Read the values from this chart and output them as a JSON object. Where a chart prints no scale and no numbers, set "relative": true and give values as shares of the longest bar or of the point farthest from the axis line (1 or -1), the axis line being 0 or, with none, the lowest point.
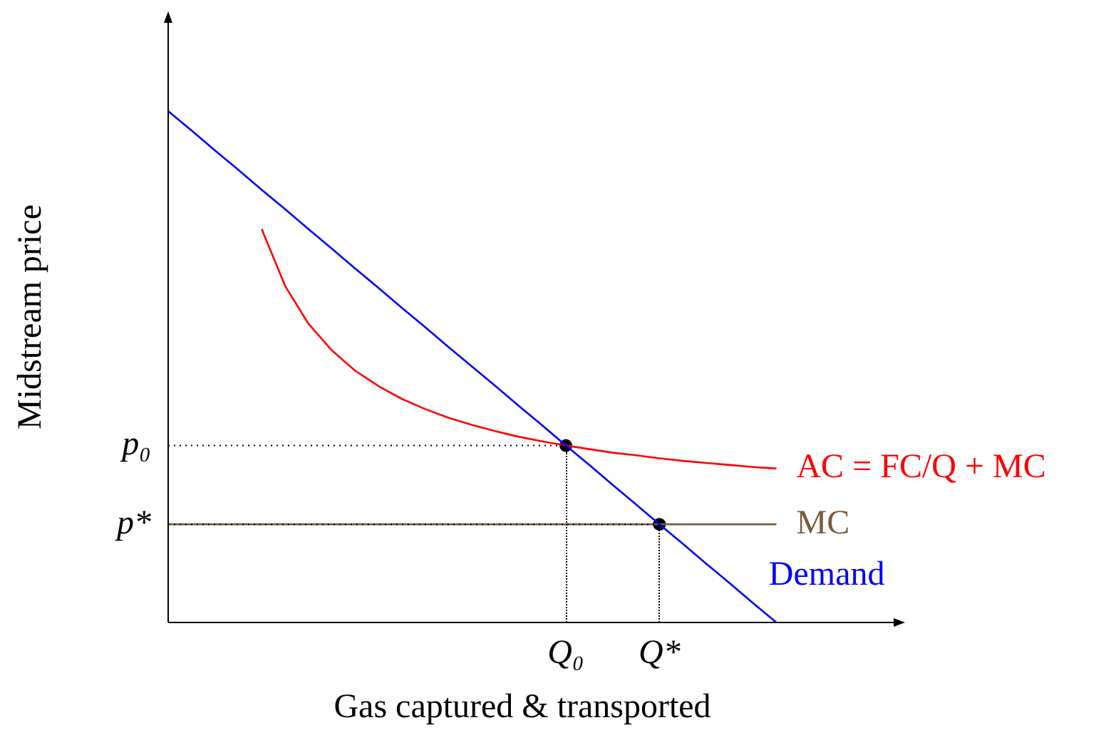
{
  "chart_data": {
    "type": "line",
    "relative": true,
    "xlabel": "Gas captured & transported",
    "ylabel": "Midstream price",
    "legend": false,
    "marker": "none",
    "line_style": "solid",
    "categories": [
      null,
      null,
      null,
      null,
      null,
      null,
      null,
      null,
      null,
      null,
      null,
      null,
      null,
      null,
      null,
      null,
      null,
      "Q₀",
      null,
      null,
      null,
      "Q*",
      null,
      null,
      null,
      null,
      null,
      null,
      null,
      null,
      null,
      null
    ],
    "series": [
      {
        "name": "Demand",
        "color": "#0000ff",
        "values": [
          1,
          0.962,
          0.923,
          0.885,
          0.846,
          0.808,
          0.769,
          0.731,
          0.692,
          0.654,
          0.615,
          0.577,
          0.538,
          0.5,
          0.462,
          0.423,
          0.385,
          0.346,
          0.308,
          0.269,
          0.231,
          0.192,
          0.154,
          0.115,
          0.077,
          0.038,
          0,
          null,
          null,
          null,
          null,
          null
        ]
      },
      {
        "name": "AC = FC/Q + MC",
        "color": "#ff0000",
        "values": [
          null,
          null,
          null,
          null,
          0.769,
          0.658,
          0.584,
          0.532,
          0.492,
          0.462,
          0.437,
          0.417,
          0.4,
          0.386,
          0.374,
          0.363,
          0.354,
          0.346,
          0.339,
          0.332,
          0.327,
          0.321,
          0.316,
          0.312,
          0.308,
          0.304,
          0.301,
          null,
          null,
          null,
          null,
          null
        ]
      },
      {
        "name": "MC",
        "color": "#7b5b3b",
        "values": [
          0.192,
          0.192,
          0.192,
          0.192,
          0.192,
          0.192,
          0.192,
          0.192,
          0.192,
          0.192,
          0.192,
          0.192,
          0.192,
          0.192,
          0.192,
          0.192,
          0.192,
          0.192,
          0.192,
          0.192,
          0.192,
          0.192,
          0.192,
          0.192,
          0.192,
          0.192,
          0.192,
          null,
          null,
          null,
          null,
          null
        ]
      },
      {
        "type": "scatter",
        "color": "#000000",
        "marker": "circle",
        "values": [
          null,
          null,
          null,
          null,
          null,
          null,
          null,
          null,
          null,
          null,
          null,
          null,
          null,
          null,
          null,
          null,
          null,
          0.346,
          null,
          null,
          null,
          0.192,
          null,
          null,
          null,
          null,
          null,
          null,
          null,
          null,
          null,
          null
        ]
      }
    ],
    "ref_lines": [
      {
        "axis": "y",
        "value": 0.346,
        "label": "p₀",
        "line_style": "dotted",
        "color": "#000000"
      },
      {
        "axis": "y",
        "value": 0.192,
        "label": "p*",
        "line_style": "dotted",
        "color": "#000000"
      }
    ]
  }
}
